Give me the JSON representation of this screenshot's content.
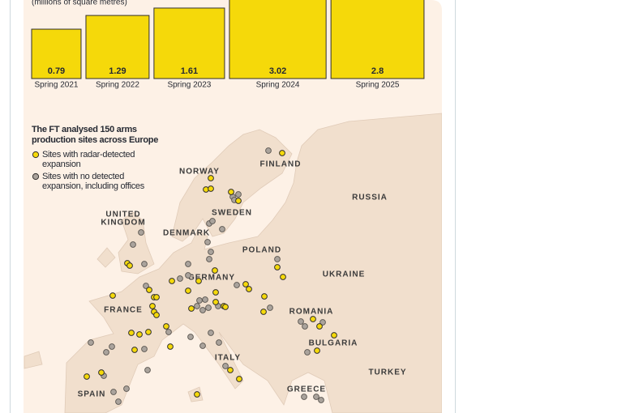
{
  "chart_data": {
    "type": "bar",
    "subtitle": "(millions of square metres)",
    "categories": [
      "Spring 2021",
      "Spring 2022",
      "Spring 2023",
      "Spring 2024",
      "Spring 2025"
    ],
    "values": [
      0.79,
      1.29,
      1.61,
      3.02,
      2.8
    ],
    "color": "#f5d90a",
    "scale": "sqrt"
  },
  "map": {
    "heading": [
      "The FT analysed 150 arms",
      "production sites across Europe"
    ],
    "legend": [
      {
        "label": [
          "Sites with radar-detected",
          "expansion"
        ],
        "color": "#f5d90a"
      },
      {
        "label": [
          "Sites with no detected",
          "expansion, including offices"
        ],
        "color": "#aaa39c"
      }
    ],
    "countries": [
      [
        "NORWAY"
      ],
      [
        "FINLAND"
      ],
      [
        "RUSSIA"
      ],
      [
        "SWEDEN"
      ],
      [
        "UNITED",
        "KINGDOM"
      ],
      [
        "DENMARK"
      ],
      [
        "POLAND"
      ],
      [
        "GERMANY"
      ],
      [
        "UKRAINE"
      ],
      [
        "FRANCE"
      ],
      [
        "ROMANIA"
      ],
      [
        "BULGARIA"
      ],
      [
        "ITALY"
      ],
      [
        "TURKEY"
      ],
      [
        "GREECE"
      ],
      [
        "SPAIN"
      ]
    ]
  }
}
